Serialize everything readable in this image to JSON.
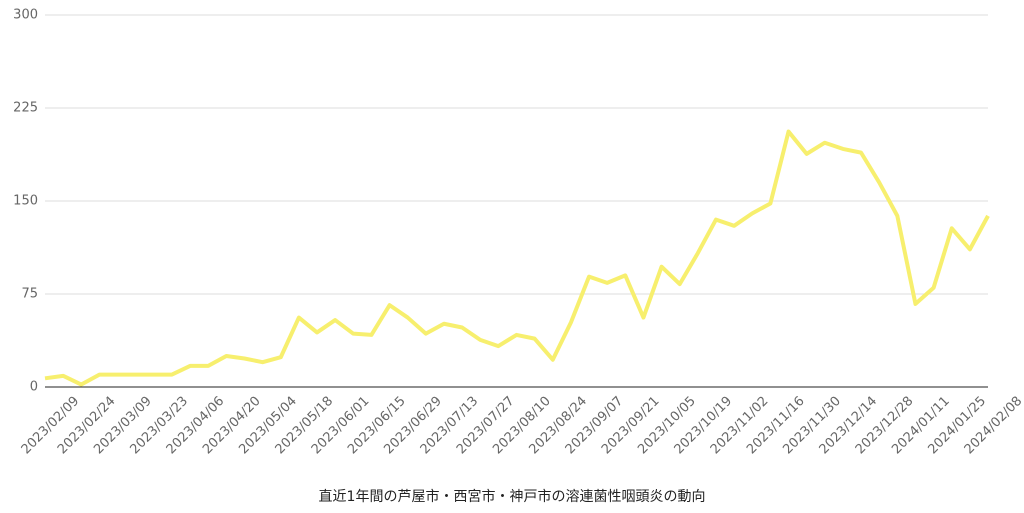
{
  "chart_data": {
    "type": "line",
    "title": "直近1年間の芦屋市・西宮市・神戸市の溶連菌性咽頭炎の動向",
    "categories": [
      "2023/02/09",
      null,
      "2023/02/24",
      null,
      "2023/03/09",
      null,
      "2023/03/23",
      null,
      "2023/04/06",
      null,
      "2023/04/20",
      null,
      "2023/05/04",
      null,
      "2023/05/18",
      null,
      "2023/06/01",
      null,
      "2023/06/15",
      null,
      "2023/06/29",
      null,
      "2023/07/13",
      null,
      "2023/07/27",
      null,
      "2023/08/10",
      null,
      "2023/08/24",
      null,
      "2023/09/07",
      null,
      "2023/09/21",
      null,
      "2023/10/05",
      null,
      "2023/10/19",
      null,
      "2023/11/02",
      null,
      "2023/11/16",
      null,
      "2023/11/30",
      null,
      "2023/12/14",
      null,
      "2023/12/28",
      null,
      "2024/01/11",
      null,
      "2024/01/25",
      null,
      "2024/02/08"
    ],
    "values": [
      7,
      9,
      2,
      10,
      10,
      10,
      10,
      10,
      17,
      17,
      25,
      23,
      20,
      24,
      56,
      44,
      54,
      43,
      42,
      66,
      56,
      43,
      51,
      48,
      38,
      33,
      42,
      39,
      22,
      52,
      89,
      84,
      90,
      56,
      97,
      83,
      108,
      135,
      130,
      140,
      148,
      206,
      188,
      197,
      192,
      189,
      165,
      138,
      67,
      80,
      128,
      111,
      138
    ],
    "color": "#f7ef6e",
    "ylim": [
      0,
      300
    ],
    "yticks": [
      0,
      75,
      150,
      225,
      300
    ],
    "grid": true
  }
}
